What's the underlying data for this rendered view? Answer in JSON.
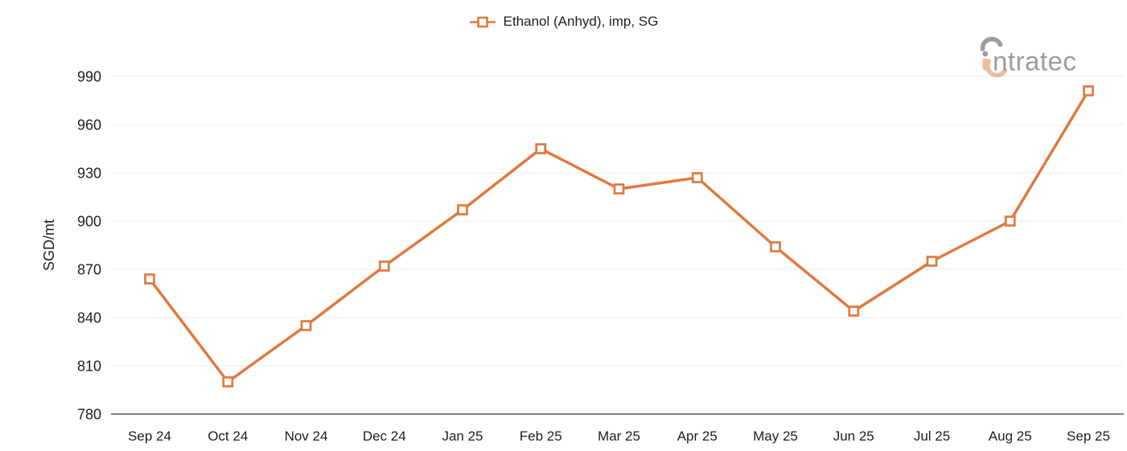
{
  "legend": {
    "label": "Ethanol (Anhyd), imp, SG",
    "marker_color": "#e0793e"
  },
  "logo": {
    "text": "intratec",
    "text_color": "#9c9c9c",
    "accent_color": "#e3c0a0"
  },
  "chart_data": {
    "type": "line",
    "title": "",
    "categories": [
      "Sep 24",
      "Oct 24",
      "Nov 24",
      "Dec 24",
      "Jan 25",
      "Feb 25",
      "Mar 25",
      "Apr 25",
      "May 25",
      "Jun 25",
      "Jul 25",
      "Aug 25",
      "Sep 25"
    ],
    "series": [
      {
        "name": "Ethanol (Anhyd), imp, SG",
        "values": [
          864,
          800,
          835,
          872,
          907,
          945,
          920,
          927,
          884,
          844,
          875,
          900,
          981
        ],
        "color": "#e0793e",
        "marker": "open-square"
      }
    ],
    "xlabel": "",
    "ylabel": "SGD/mt",
    "ylim": [
      780,
      990
    ],
    "yticks": [
      780,
      810,
      840,
      870,
      900,
      930,
      960,
      990
    ],
    "grid": true,
    "legend_position": "top-center",
    "colors": {
      "gridline": "#ededed",
      "axis_line": "#7f7f7f",
      "tick_label": "#1f1f1f",
      "marker_fill": "#ffffff"
    }
  }
}
